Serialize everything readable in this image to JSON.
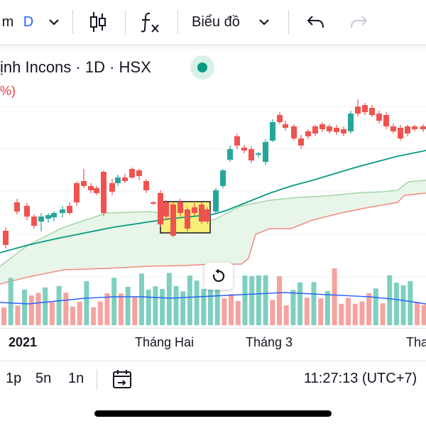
{
  "toolbar": {
    "interval_label": "m",
    "interval_value": "D",
    "chart_type_icon": "candlestick-icon",
    "indicators_icon": "function-fx-icon",
    "chart_menu_label": "Biểu đồ",
    "undo_icon": "undo-icon",
    "redo_icon": "redo-icon"
  },
  "legend": {
    "title": "ịnh Incons · 1D · HSX",
    "change_text": "%)",
    "status_color": "#089981"
  },
  "colors": {
    "up": "#26a69a",
    "down": "#ef5350",
    "ma": "#089981",
    "highlight": "#f7ef7a",
    "cloud_line": "#a5d6a7",
    "cloud_fill": "#e8f5e9",
    "lower_band": "#f28b82",
    "volume_ma": "#2962ff"
  },
  "xaxis": {
    "labels": [
      "2021",
      "Tháng Hai",
      "Tháng 3",
      "Tha"
    ]
  },
  "bottom_bar": {
    "ranges": [
      "1p",
      "5n",
      "1n"
    ],
    "goto_date_icon": "goto-date-icon",
    "clock": "11:27:13 (UTC+7)"
  },
  "reset_icon": "reset-rotate-icon"
}
